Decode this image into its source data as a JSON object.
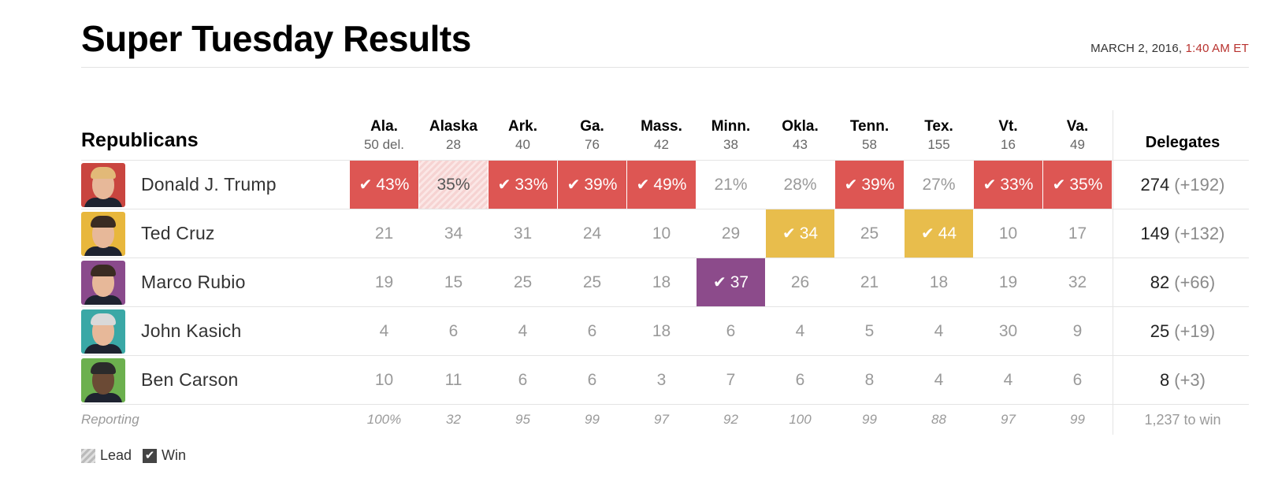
{
  "header": {
    "title": "Super Tuesday Results",
    "date": "MARCH 2, 2016,",
    "time": "1:40 AM ET",
    "time_color": "#b8322e"
  },
  "table": {
    "section_label": "Republicans",
    "delegates_header": "Delegates",
    "states": [
      {
        "abbr": "Ala.",
        "delegates": "50 del."
      },
      {
        "abbr": "Alaska",
        "delegates": "28"
      },
      {
        "abbr": "Ark.",
        "delegates": "40"
      },
      {
        "abbr": "Ga.",
        "delegates": "76"
      },
      {
        "abbr": "Mass.",
        "delegates": "42"
      },
      {
        "abbr": "Minn.",
        "delegates": "38"
      },
      {
        "abbr": "Okla.",
        "delegates": "43"
      },
      {
        "abbr": "Tenn.",
        "delegates": "58"
      },
      {
        "abbr": "Tex.",
        "delegates": "155"
      },
      {
        "abbr": "Vt.",
        "delegates": "16"
      },
      {
        "abbr": "Va.",
        "delegates": "49"
      }
    ],
    "candidates": [
      {
        "name": "Donald J. Trump",
        "avatar_color": "#c9453f",
        "delegates": "274",
        "gain": "(+192)",
        "results": [
          {
            "value": "43%",
            "status": "win-red",
            "check": "✔"
          },
          {
            "value": "35%",
            "status": "lead-red",
            "check": ""
          },
          {
            "value": "33%",
            "status": "win-red",
            "check": "✔"
          },
          {
            "value": "39%",
            "status": "win-red",
            "check": "✔"
          },
          {
            "value": "49%",
            "status": "win-red",
            "check": "✔"
          },
          {
            "value": "21%",
            "status": "none",
            "check": ""
          },
          {
            "value": "28%",
            "status": "none",
            "check": ""
          },
          {
            "value": "39%",
            "status": "win-red",
            "check": "✔"
          },
          {
            "value": "27%",
            "status": "none",
            "check": ""
          },
          {
            "value": "33%",
            "status": "win-red",
            "check": "✔"
          },
          {
            "value": "35%",
            "status": "win-red",
            "check": "✔"
          }
        ]
      },
      {
        "name": "Ted Cruz",
        "avatar_color": "#e8b73c",
        "delegates": "149",
        "gain": "(+132)",
        "results": [
          {
            "value": "21",
            "status": "none",
            "check": ""
          },
          {
            "value": "34",
            "status": "none",
            "check": ""
          },
          {
            "value": "31",
            "status": "none",
            "check": ""
          },
          {
            "value": "24",
            "status": "none",
            "check": ""
          },
          {
            "value": "10",
            "status": "none",
            "check": ""
          },
          {
            "value": "29",
            "status": "none",
            "check": ""
          },
          {
            "value": "34",
            "status": "win-yellow",
            "check": "✔"
          },
          {
            "value": "25",
            "status": "none",
            "check": ""
          },
          {
            "value": "44",
            "status": "win-yellow",
            "check": "✔"
          },
          {
            "value": "10",
            "status": "none",
            "check": ""
          },
          {
            "value": "17",
            "status": "none",
            "check": ""
          }
        ]
      },
      {
        "name": "Marco Rubio",
        "avatar_color": "#8a4a8c",
        "delegates": "82",
        "gain": "(+66)",
        "results": [
          {
            "value": "19",
            "status": "none",
            "check": ""
          },
          {
            "value": "15",
            "status": "none",
            "check": ""
          },
          {
            "value": "25",
            "status": "none",
            "check": ""
          },
          {
            "value": "25",
            "status": "none",
            "check": ""
          },
          {
            "value": "18",
            "status": "none",
            "check": ""
          },
          {
            "value": "37",
            "status": "win-purple",
            "check": "✔"
          },
          {
            "value": "26",
            "status": "none",
            "check": ""
          },
          {
            "value": "21",
            "status": "none",
            "check": ""
          },
          {
            "value": "18",
            "status": "none",
            "check": ""
          },
          {
            "value": "19",
            "status": "none",
            "check": ""
          },
          {
            "value": "32",
            "status": "none",
            "check": ""
          }
        ]
      },
      {
        "name": "John Kasich",
        "avatar_color": "#3aa8a6",
        "delegates": "25",
        "gain": "(+19)",
        "results": [
          {
            "value": "4",
            "status": "none",
            "check": ""
          },
          {
            "value": "6",
            "status": "none",
            "check": ""
          },
          {
            "value": "4",
            "status": "none",
            "check": ""
          },
          {
            "value": "6",
            "status": "none",
            "check": ""
          },
          {
            "value": "18",
            "status": "none",
            "check": ""
          },
          {
            "value": "6",
            "status": "none",
            "check": ""
          },
          {
            "value": "4",
            "status": "none",
            "check": ""
          },
          {
            "value": "5",
            "status": "none",
            "check": ""
          },
          {
            "value": "4",
            "status": "none",
            "check": ""
          },
          {
            "value": "30",
            "status": "none",
            "check": ""
          },
          {
            "value": "9",
            "status": "none",
            "check": ""
          }
        ]
      },
      {
        "name": "Ben Carson",
        "avatar_color": "#6cb04e",
        "delegates": "8",
        "gain": "(+3)",
        "results": [
          {
            "value": "10",
            "status": "none",
            "check": ""
          },
          {
            "value": "11",
            "status": "none",
            "check": ""
          },
          {
            "value": "6",
            "status": "none",
            "check": ""
          },
          {
            "value": "6",
            "status": "none",
            "check": ""
          },
          {
            "value": "3",
            "status": "none",
            "check": ""
          },
          {
            "value": "7",
            "status": "none",
            "check": ""
          },
          {
            "value": "6",
            "status": "none",
            "check": ""
          },
          {
            "value": "8",
            "status": "none",
            "check": ""
          },
          {
            "value": "4",
            "status": "none",
            "check": ""
          },
          {
            "value": "4",
            "status": "none",
            "check": ""
          },
          {
            "value": "6",
            "status": "none",
            "check": ""
          }
        ]
      }
    ],
    "reporting": {
      "label": "Reporting",
      "values": [
        "100%",
        "32",
        "95",
        "99",
        "97",
        "92",
        "100",
        "99",
        "88",
        "97",
        "99"
      ],
      "to_win": "1,237 to win"
    }
  },
  "legend": {
    "lead_label": "Lead",
    "win_label": "Win",
    "win_check": "✔"
  },
  "colors": {
    "trump_red": "#dd5653",
    "cruz_yellow": "#e8bd4c",
    "rubio_purple": "#8c4b8b",
    "kasich_teal": "#3aa8a6",
    "carson_green": "#6cb04e"
  },
  "icons": {
    "check": "check-icon",
    "lead_pattern": "lead-hatch-icon"
  }
}
